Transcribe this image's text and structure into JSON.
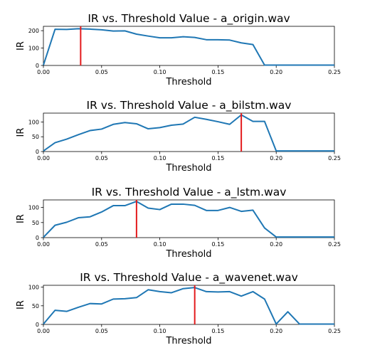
{
  "chart_data": [
    {
      "type": "line",
      "title": "IR vs. Threshold Value - a_origin.wav",
      "xlabel": "Threshold",
      "ylabel": "IR",
      "xlim": [
        0,
        0.25
      ],
      "ylim": [
        0,
        225
      ],
      "xticks": [
        0.0,
        0.05,
        0.1,
        0.15,
        0.2,
        0.25
      ],
      "xtick_labels": [
        "0.00",
        "0.05",
        "0.10",
        "0.15",
        "0.20",
        "0.25"
      ],
      "yticks": [
        0,
        100,
        200
      ],
      "ytick_labels": [
        "0",
        "100",
        "200"
      ],
      "series": [
        {
          "color": "#1f77b4",
          "x": [
            0.0,
            0.01,
            0.02,
            0.03,
            0.04,
            0.05,
            0.06,
            0.07,
            0.08,
            0.09,
            0.1,
            0.11,
            0.12,
            0.13,
            0.14,
            0.15,
            0.16,
            0.17,
            0.18,
            0.19,
            0.2,
            0.21,
            0.22,
            0.23,
            0.24,
            0.25
          ],
          "y": [
            2,
            208,
            207,
            211,
            209,
            205,
            198,
            199,
            180,
            169,
            159,
            159,
            165,
            161,
            148,
            148,
            146,
            130,
            120,
            2,
            2,
            2,
            2,
            2,
            2,
            2
          ]
        }
      ],
      "vline": {
        "x": 0.032,
        "color": "#e31a1c"
      }
    },
    {
      "type": "line",
      "title": "IR vs. Threshold Value - a_bilstm.wav",
      "xlabel": "Threshold",
      "ylabel": "IR",
      "xlim": [
        0,
        0.25
      ],
      "ylim": [
        0,
        130
      ],
      "xticks": [
        0.0,
        0.05,
        0.1,
        0.15,
        0.2,
        0.25
      ],
      "xtick_labels": [
        "0.00",
        "0.05",
        "0.10",
        "0.15",
        "0.20",
        "0.25"
      ],
      "yticks": [
        0,
        50,
        100
      ],
      "ytick_labels": [
        "0",
        "50",
        "100"
      ],
      "series": [
        {
          "color": "#1f77b4",
          "x": [
            0.0,
            0.01,
            0.02,
            0.03,
            0.04,
            0.05,
            0.06,
            0.07,
            0.08,
            0.09,
            0.1,
            0.11,
            0.12,
            0.13,
            0.14,
            0.15,
            0.16,
            0.17,
            0.18,
            0.19,
            0.2,
            0.21,
            0.22,
            0.23,
            0.24,
            0.25
          ],
          "y": [
            2,
            30,
            42,
            57,
            71,
            76,
            92,
            98,
            94,
            77,
            81,
            89,
            93,
            116,
            109,
            101,
            92,
            124,
            102,
            102,
            2,
            2,
            2,
            2,
            2,
            2
          ]
        }
      ],
      "vline": {
        "x": 0.17,
        "color": "#e31a1c"
      }
    },
    {
      "type": "line",
      "title": "IR vs. Threshold Value - a_lstm.wav",
      "xlabel": "Threshold",
      "ylabel": "IR",
      "xlim": [
        0,
        0.25
      ],
      "ylim": [
        0,
        125
      ],
      "xticks": [
        0.0,
        0.05,
        0.1,
        0.15,
        0.2,
        0.25
      ],
      "xtick_labels": [
        "0.00",
        "0.05",
        "0.10",
        "0.15",
        "0.20",
        "0.25"
      ],
      "yticks": [
        0,
        50,
        100
      ],
      "ytick_labels": [
        "0",
        "50",
        "100"
      ],
      "series": [
        {
          "color": "#1f77b4",
          "x": [
            0.0,
            0.01,
            0.02,
            0.03,
            0.04,
            0.05,
            0.06,
            0.07,
            0.08,
            0.09,
            0.1,
            0.11,
            0.12,
            0.13,
            0.14,
            0.15,
            0.16,
            0.17,
            0.18,
            0.19,
            0.2,
            0.21,
            0.22,
            0.23,
            0.24,
            0.25
          ],
          "y": [
            1,
            41,
            51,
            66,
            69,
            85,
            106,
            106,
            120,
            98,
            93,
            111,
            111,
            107,
            90,
            90,
            100,
            87,
            91,
            32,
            2,
            2,
            2,
            2,
            2,
            2
          ]
        }
      ],
      "vline": {
        "x": 0.08,
        "color": "#e31a1c"
      }
    },
    {
      "type": "line",
      "title": "IR vs. Threshold Value - a_wavenet.wav",
      "xlabel": "Threshold",
      "ylabel": "IR",
      "xlim": [
        0,
        0.25
      ],
      "ylim": [
        0,
        105
      ],
      "xticks": [
        0.0,
        0.05,
        0.1,
        0.15,
        0.2,
        0.25
      ],
      "xtick_labels": [
        "0.00",
        "0.05",
        "0.10",
        "0.15",
        "0.20",
        "0.25"
      ],
      "yticks": [
        0,
        50,
        100
      ],
      "ytick_labels": [
        "0",
        "50",
        "100"
      ],
      "series": [
        {
          "color": "#1f77b4",
          "x": [
            0.0,
            0.01,
            0.02,
            0.03,
            0.04,
            0.05,
            0.06,
            0.07,
            0.08,
            0.09,
            0.1,
            0.11,
            0.12,
            0.13,
            0.14,
            0.15,
            0.16,
            0.17,
            0.18,
            0.19,
            0.2,
            0.21,
            0.22,
            0.23,
            0.24,
            0.25
          ],
          "y": [
            1,
            38,
            35,
            46,
            56,
            55,
            68,
            69,
            72,
            93,
            88,
            85,
            96,
            99,
            88,
            87,
            88,
            76,
            88,
            68,
            1,
            34,
            1,
            1,
            1,
            1
          ]
        }
      ],
      "vline": {
        "x": 0.13,
        "color": "#e31a1c"
      }
    }
  ]
}
